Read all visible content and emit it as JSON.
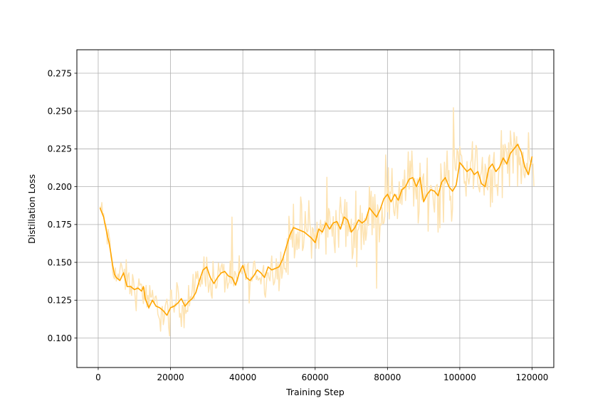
{
  "chart_data": {
    "type": "line",
    "title": "",
    "xlabel": "Training Step",
    "ylabel": "Distillation Loss",
    "xlim": [
      -5900,
      126000
    ],
    "ylim": [
      0.0805,
      0.2905
    ],
    "xticks": [
      0,
      20000,
      40000,
      60000,
      80000,
      100000,
      120000
    ],
    "xtick_labels": [
      "0",
      "20000",
      "40000",
      "60000",
      "80000",
      "100000",
      "120000"
    ],
    "yticks": [
      0.1,
      0.125,
      0.15,
      0.175,
      0.2,
      0.225,
      0.25,
      0.275
    ],
    "ytick_labels": [
      "0.100",
      "0.125",
      "0.150",
      "0.175",
      "0.200",
      "0.225",
      "0.250",
      "0.275"
    ],
    "grid": true,
    "legend": "none",
    "colors": {
      "raw": "#fde3b2",
      "smoothed": "#ffa500"
    },
    "series": [
      {
        "role": "raw",
        "x_start": 500,
        "x_step": 250,
        "n": 481,
        "anchors": [
          [
            500,
            0.186
          ],
          [
            2000,
            0.175
          ],
          [
            3500,
            0.155
          ],
          [
            5000,
            0.14
          ],
          [
            7000,
            0.142
          ],
          [
            9000,
            0.135
          ],
          [
            11000,
            0.13
          ],
          [
            12500,
            0.133
          ],
          [
            14000,
            0.12
          ],
          [
            16000,
            0.122
          ],
          [
            18000,
            0.115
          ],
          [
            20000,
            0.12
          ],
          [
            22000,
            0.123
          ],
          [
            24000,
            0.122
          ],
          [
            26000,
            0.127
          ],
          [
            28000,
            0.14
          ],
          [
            30000,
            0.145
          ],
          [
            32000,
            0.137
          ],
          [
            34000,
            0.142
          ],
          [
            36000,
            0.14
          ],
          [
            38000,
            0.136
          ],
          [
            40000,
            0.146
          ],
          [
            42000,
            0.138
          ],
          [
            44000,
            0.145
          ],
          [
            46000,
            0.14
          ],
          [
            48000,
            0.147
          ],
          [
            50000,
            0.145
          ],
          [
            52000,
            0.152
          ],
          [
            53000,
            0.165
          ],
          [
            54000,
            0.172
          ],
          [
            56000,
            0.17
          ],
          [
            58000,
            0.172
          ],
          [
            60000,
            0.165
          ],
          [
            62000,
            0.17
          ],
          [
            64000,
            0.173
          ],
          [
            66000,
            0.175
          ],
          [
            68000,
            0.18
          ],
          [
            70000,
            0.168
          ],
          [
            72000,
            0.176
          ],
          [
            74000,
            0.176
          ],
          [
            76000,
            0.186
          ],
          [
            78000,
            0.18
          ],
          [
            80000,
            0.195
          ],
          [
            82000,
            0.19
          ],
          [
            84000,
            0.2
          ],
          [
            86000,
            0.205
          ],
          [
            88000,
            0.198
          ],
          [
            90000,
            0.192
          ],
          [
            92000,
            0.2
          ],
          [
            94000,
            0.196
          ],
          [
            96000,
            0.205
          ],
          [
            98000,
            0.2
          ],
          [
            100000,
            0.216
          ],
          [
            102000,
            0.21
          ],
          [
            104000,
            0.213
          ],
          [
            106000,
            0.2
          ],
          [
            108000,
            0.212
          ],
          [
            110000,
            0.21
          ],
          [
            112000,
            0.217
          ],
          [
            114000,
            0.222
          ],
          [
            116000,
            0.227
          ],
          [
            118000,
            0.21
          ],
          [
            120000,
            0.222
          ]
        ],
        "noise_amplitude": [
          [
            500,
            0.011
          ],
          [
            10000,
            0.014
          ],
          [
            20000,
            0.016
          ],
          [
            40000,
            0.016
          ],
          [
            50000,
            0.015
          ],
          [
            52000,
            0.024
          ],
          [
            60000,
            0.022
          ],
          [
            70000,
            0.025
          ],
          [
            80000,
            0.025
          ],
          [
            100000,
            0.03
          ],
          [
            120000,
            0.025
          ]
        ]
      },
      {
        "role": "smoothed",
        "x": [
          500,
          1500,
          2500,
          3000,
          3500,
          4000,
          4500,
          5000,
          6000,
          7000,
          8000,
          9000,
          10000,
          11000,
          12000,
          12500,
          13000,
          14000,
          15000,
          16000,
          17000,
          18000,
          19000,
          20000,
          21000,
          22000,
          23000,
          24000,
          25000,
          26000,
          27000,
          28000,
          29000,
          30000,
          31000,
          32000,
          33000,
          34000,
          35000,
          36000,
          37000,
          38000,
          39000,
          40000,
          41000,
          42000,
          43000,
          44000,
          45000,
          46000,
          47000,
          48000,
          49000,
          50000,
          51000,
          52000,
          53000,
          54000,
          55000,
          56000,
          57000,
          58000,
          59000,
          60000,
          61000,
          62000,
          63000,
          64000,
          65000,
          66000,
          67000,
          68000,
          69000,
          70000,
          71000,
          72000,
          73000,
          74000,
          75000,
          76000,
          77000,
          78000,
          79000,
          80000,
          81000,
          82000,
          83000,
          84000,
          85000,
          86000,
          87000,
          88000,
          89000,
          90000,
          91000,
          92000,
          93000,
          94000,
          95000,
          96000,
          97000,
          98000,
          99000,
          100000,
          101000,
          102000,
          103000,
          104000,
          105000,
          106000,
          107000,
          108000,
          109000,
          110000,
          111000,
          112000,
          113000,
          114000,
          115000,
          116000,
          117000,
          118000,
          119000,
          120000
        ],
        "y": [
          0.186,
          0.18,
          0.168,
          0.163,
          0.156,
          0.148,
          0.142,
          0.14,
          0.138,
          0.143,
          0.134,
          0.134,
          0.132,
          0.133,
          0.131,
          0.134,
          0.126,
          0.12,
          0.125,
          0.121,
          0.12,
          0.118,
          0.115,
          0.12,
          0.121,
          0.123,
          0.126,
          0.121,
          0.124,
          0.126,
          0.13,
          0.138,
          0.145,
          0.147,
          0.14,
          0.136,
          0.14,
          0.143,
          0.144,
          0.141,
          0.14,
          0.135,
          0.143,
          0.148,
          0.14,
          0.138,
          0.141,
          0.145,
          0.143,
          0.14,
          0.147,
          0.145,
          0.146,
          0.147,
          0.152,
          0.16,
          0.168,
          0.173,
          0.172,
          0.171,
          0.17,
          0.168,
          0.166,
          0.163,
          0.172,
          0.17,
          0.176,
          0.172,
          0.176,
          0.177,
          0.172,
          0.18,
          0.178,
          0.17,
          0.173,
          0.178,
          0.176,
          0.178,
          0.186,
          0.183,
          0.18,
          0.185,
          0.192,
          0.195,
          0.19,
          0.195,
          0.191,
          0.198,
          0.2,
          0.205,
          0.206,
          0.2,
          0.206,
          0.19,
          0.195,
          0.198,
          0.197,
          0.194,
          0.203,
          0.206,
          0.2,
          0.197,
          0.201,
          0.216,
          0.213,
          0.21,
          0.212,
          0.208,
          0.21,
          0.202,
          0.2,
          0.212,
          0.215,
          0.21,
          0.213,
          0.219,
          0.215,
          0.222,
          0.225,
          0.228,
          0.223,
          0.213,
          0.208,
          0.22
        ]
      }
    ]
  }
}
